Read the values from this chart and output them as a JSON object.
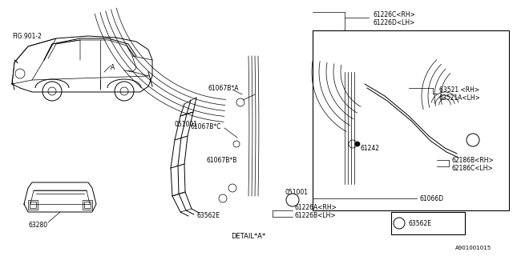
{
  "bg_color": "#FFFFFF",
  "fig_size": [
    6.4,
    3.2
  ],
  "dpi": 100,
  "labels": {
    "fig_ref": "FIG.901-2",
    "car_label_a": "A",
    "p051001": "051001",
    "p61067bA": "61067B*A",
    "p61067bC": "61067B*C",
    "p61067bB": "61067B*B",
    "p63562E": "63562E",
    "p63280": "63280",
    "p61226C": "61226C<RH>",
    "p61226D": "61226D<LH>",
    "p63521": "63521 <RH>",
    "p63521A": "63521A<LH>",
    "p61242": "61242",
    "p62186B": "62186B<RH>",
    "p62186C": "62186C<LH>",
    "p61066D": "61066D",
    "p61226A": "61226A<RH>",
    "p61226B": "61226B<LH>",
    "detail_label": "DETAIL*A*",
    "part_num": "A901001015"
  }
}
